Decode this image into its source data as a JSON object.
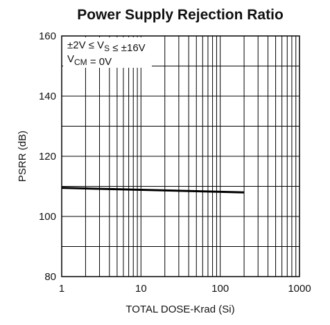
{
  "chart_data": {
    "type": "line",
    "title": "Power Supply Rejection Ratio",
    "xlabel": "TOTAL DOSE-Krad (Si)",
    "ylabel": "PSRR (dB)",
    "annotation": [
      [
        {
          "text": "±2V ≤ V"
        },
        {
          "sub": "S"
        },
        {
          "text": " ≤ ±16V"
        }
      ],
      [
        {
          "text": "V"
        },
        {
          "sub": "CM"
        },
        {
          "text": " = 0V"
        }
      ]
    ],
    "xscale": "log",
    "xlim": [
      1,
      1000
    ],
    "xticks": [
      1,
      10,
      100,
      1000
    ],
    "xminor": [
      2,
      3,
      4,
      5,
      6,
      7,
      8,
      9,
      20,
      30,
      40,
      50,
      60,
      70,
      80,
      90,
      200,
      300,
      400,
      500,
      600,
      700,
      800,
      900
    ],
    "ylim": [
      80,
      160
    ],
    "yticks": [
      80,
      100,
      120,
      140,
      160
    ],
    "yminor": [
      90,
      110,
      130,
      150
    ],
    "grid": true,
    "series": [
      {
        "color": "#000000",
        "x": [
          1,
          200
        ],
        "values": [
          109.5,
          108
        ]
      }
    ]
  }
}
